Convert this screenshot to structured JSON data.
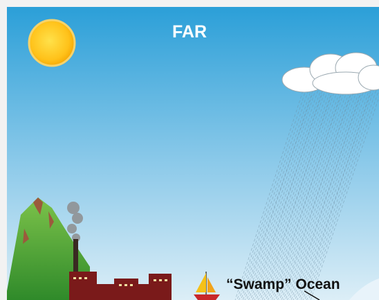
{
  "header": {
    "title": "FAR"
  },
  "labels": [
    "“Swamp” Ocean"
  ]
}
